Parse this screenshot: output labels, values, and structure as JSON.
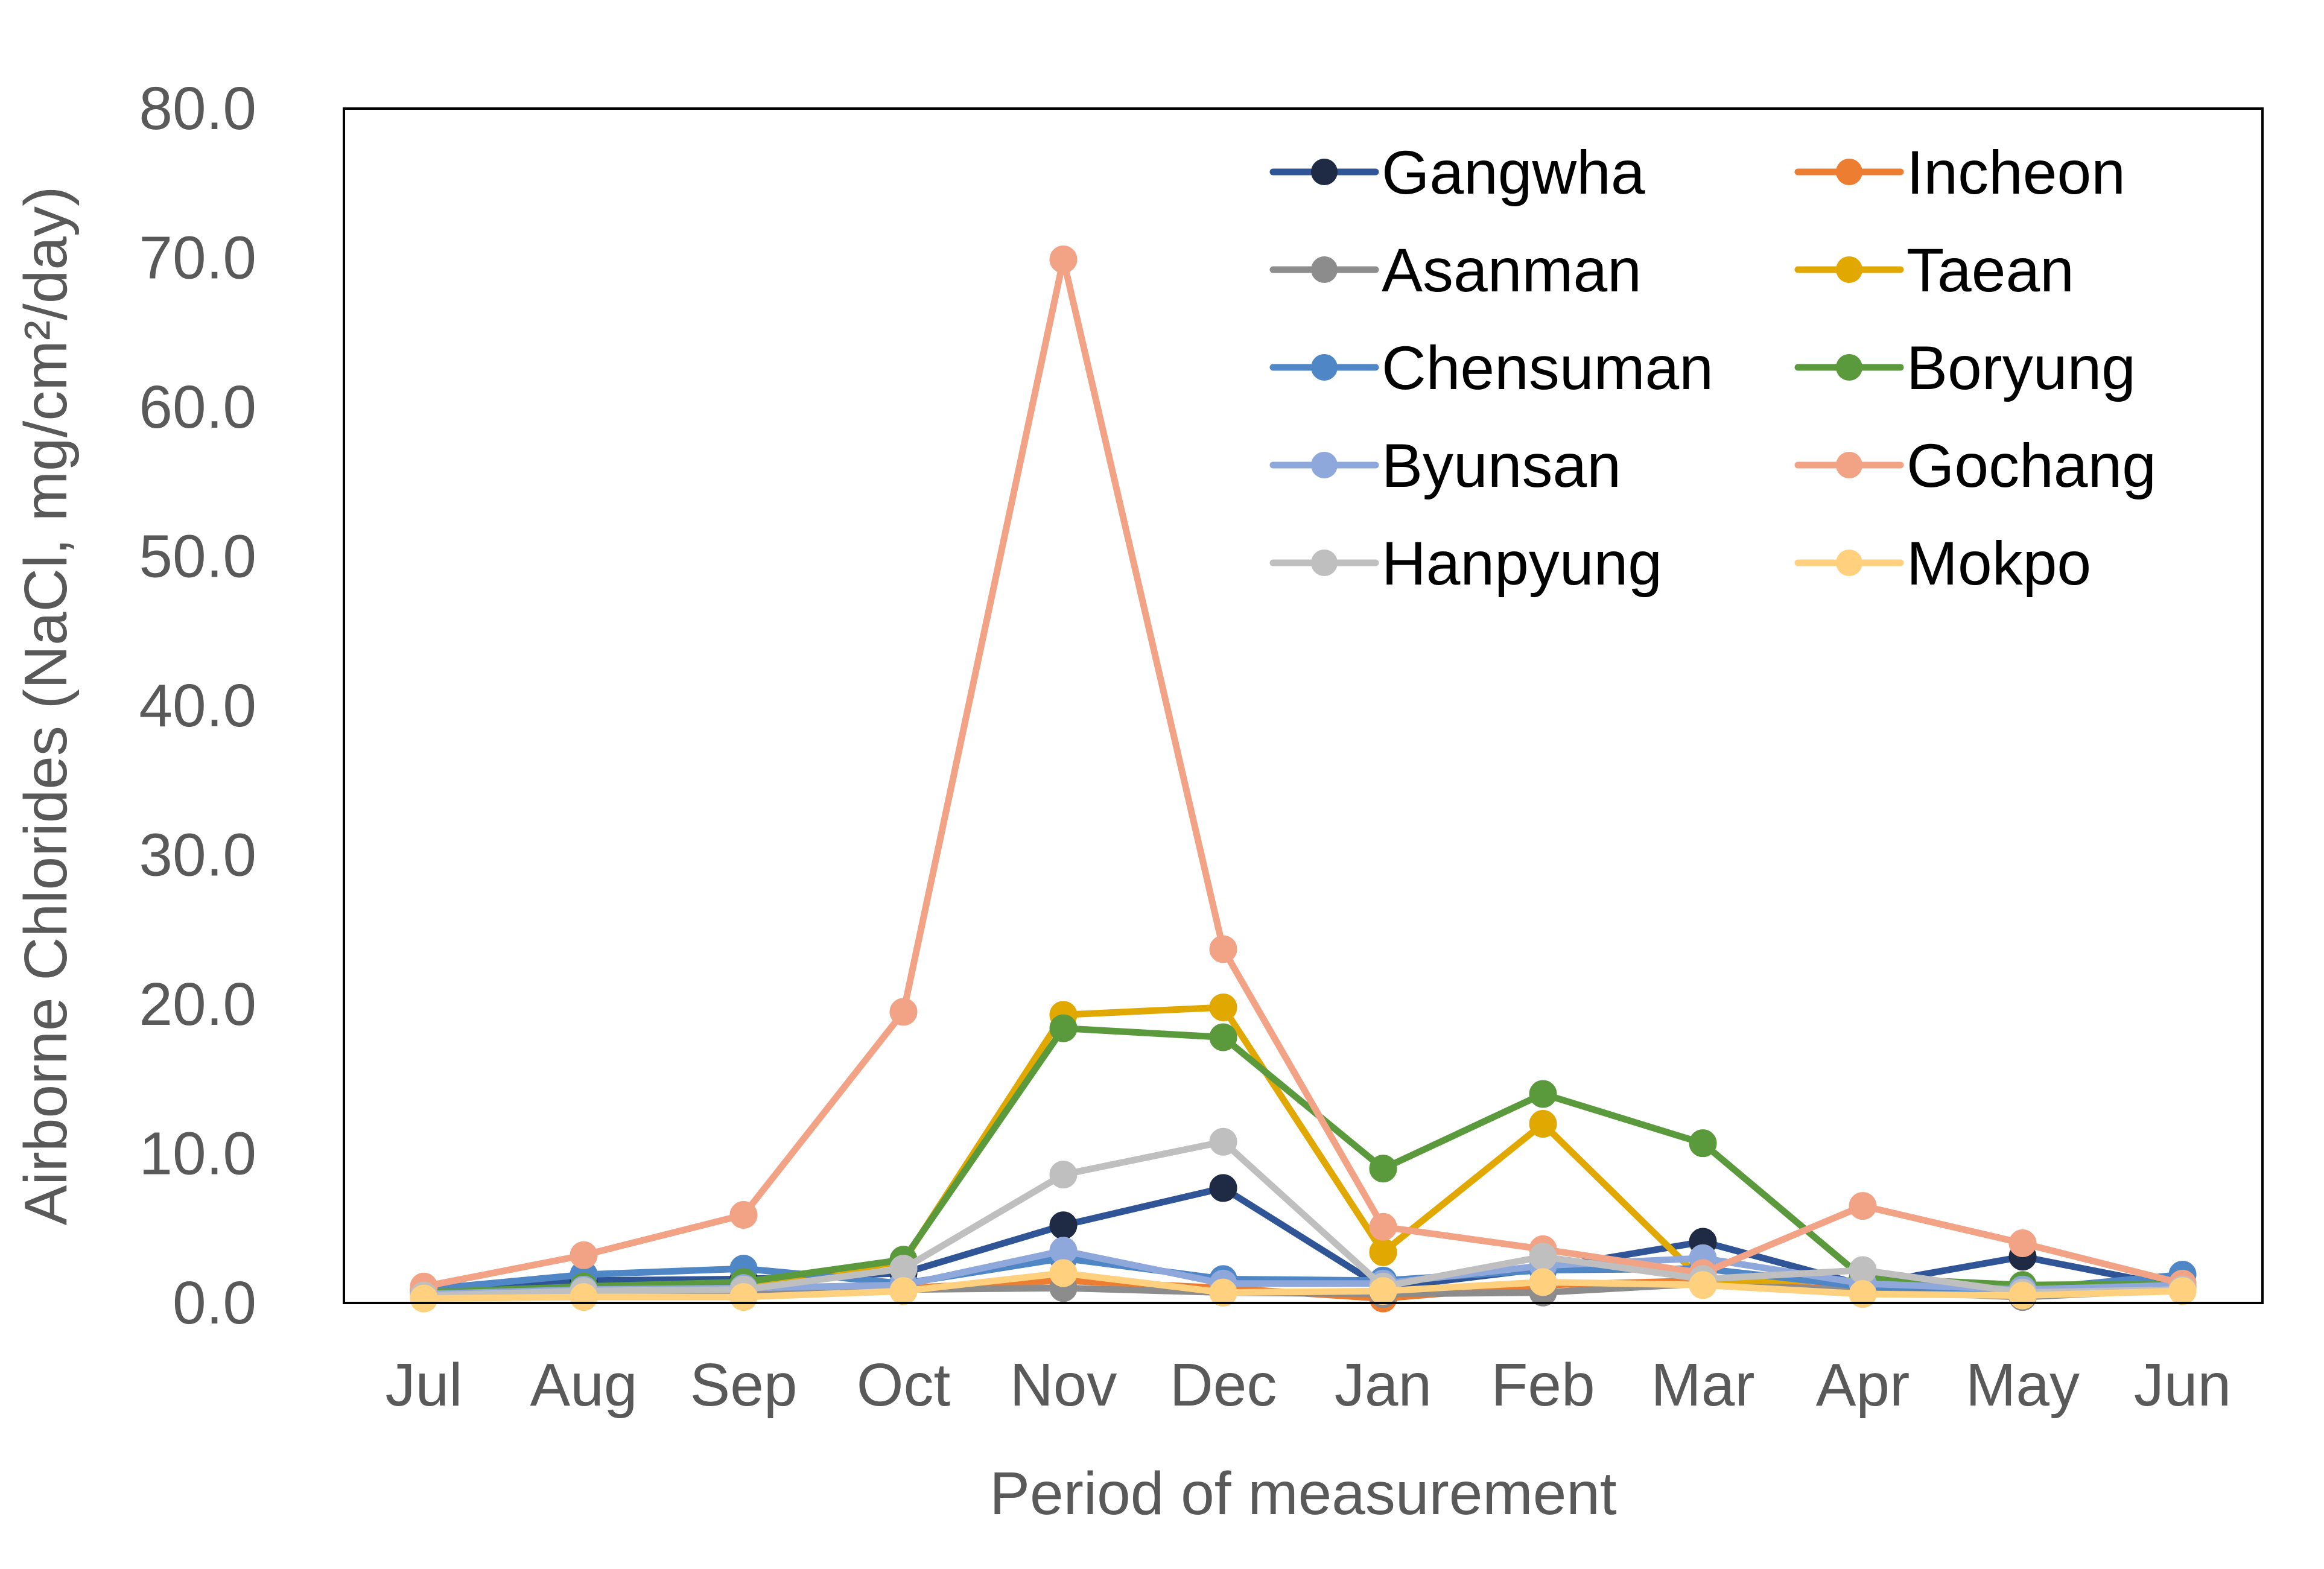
{
  "chart_data": {
    "type": "line",
    "title": "",
    "xlabel": "Period of measurement",
    "ylabel": "Airborne Chlorides (NaCl, mg/cm²/day)",
    "ylim": [
      0,
      80
    ],
    "yticks": [
      "0.0",
      "10.0",
      "20.0",
      "30.0",
      "40.0",
      "50.0",
      "60.0",
      "70.0",
      "80.0"
    ],
    "categories": [
      "Jul",
      "Aug",
      "Sep",
      "Oct",
      "Nov",
      "Dec",
      "Jan",
      "Feb",
      "Mar",
      "Apr",
      "May",
      "Jun"
    ],
    "grid": false,
    "legend_position": "top-right",
    "series": [
      {
        "name": "Gangwha",
        "color": "#2F5597",
        "marker_color": "#1F2A44",
        "values": [
          0.8,
          1.5,
          1.6,
          2.0,
          5.2,
          7.7,
          1.0,
          2.3,
          4.1,
          1.2,
          3.1,
          1.0
        ]
      },
      {
        "name": "Incheon",
        "color": "#ED7D31",
        "marker_color": "#ED7D31",
        "values": [
          0.5,
          0.7,
          0.8,
          1.0,
          1.5,
          1.0,
          0.3,
          1.2,
          1.5,
          0.8,
          0.5,
          0.9
        ]
      },
      {
        "name": "Asanman",
        "color": "#8C8C8C",
        "marker_color": "#8C8C8C",
        "values": [
          0.4,
          0.6,
          0.7,
          0.9,
          1.0,
          0.7,
          0.6,
          0.7,
          1.3,
          0.8,
          0.4,
          0.9
        ]
      },
      {
        "name": "Taean",
        "color": "#E0A800",
        "marker_color": "#E0A800",
        "values": [
          0.6,
          1.0,
          1.1,
          2.8,
          19.3,
          19.8,
          3.4,
          12.0,
          1.5,
          1.5,
          0.9,
          1.0
        ]
      },
      {
        "name": "Chensuman",
        "color": "#4F86C6",
        "marker_color": "#4F86C6",
        "values": [
          0.9,
          1.9,
          2.3,
          1.3,
          3.0,
          1.6,
          1.5,
          2.2,
          2.3,
          1.1,
          0.9,
          1.9
        ]
      },
      {
        "name": "Boryung",
        "color": "#5B9A3C",
        "marker_color": "#5B9A3C",
        "values": [
          0.7,
          1.1,
          1.4,
          2.9,
          18.4,
          17.8,
          9.0,
          14.0,
          10.7,
          1.7,
          1.2,
          1.3
        ]
      },
      {
        "name": "Byunsan",
        "color": "#8FA8DC",
        "marker_color": "#8FA8DC",
        "values": [
          0.6,
          0.9,
          1.0,
          1.2,
          3.5,
          1.3,
          1.3,
          2.5,
          3.0,
          1.3,
          0.9,
          1.2
        ]
      },
      {
        "name": "Gochang",
        "color": "#F2A385",
        "marker_color": "#F2A385",
        "values": [
          1.1,
          3.2,
          5.9,
          19.5,
          69.9,
          23.7,
          5.1,
          3.6,
          2.0,
          6.5,
          4.0,
          1.3
        ]
      },
      {
        "name": "Hanpyung",
        "color": "#BFBFBF",
        "marker_color": "#BFBFBF",
        "values": [
          0.5,
          0.8,
          0.9,
          2.3,
          8.6,
          10.8,
          1.1,
          3.1,
          1.6,
          2.2,
          0.7,
          0.9
        ]
      },
      {
        "name": "Mokpo",
        "color": "#FFD17F",
        "marker_color": "#FFD17F",
        "values": [
          0.3,
          0.4,
          0.4,
          0.8,
          2.0,
          0.7,
          0.8,
          1.4,
          1.2,
          0.6,
          0.5,
          0.8
        ]
      }
    ]
  }
}
